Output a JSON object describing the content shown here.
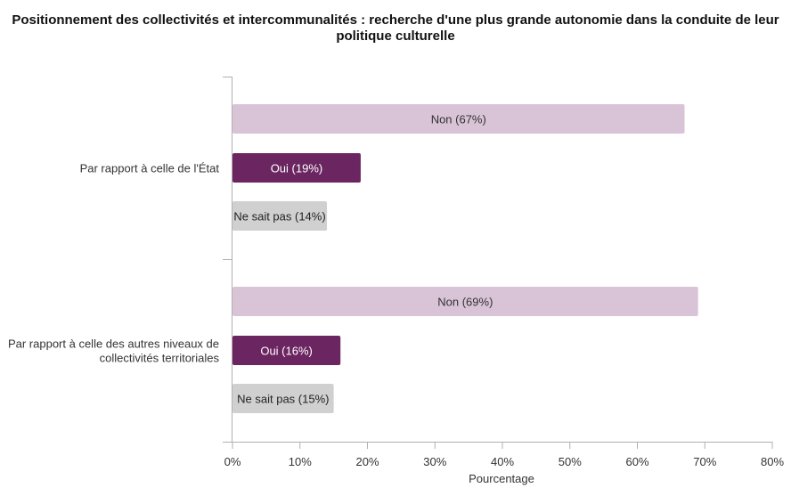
{
  "chart_data": {
    "type": "bar",
    "orientation": "horizontal",
    "title": "Positionnement des collectivités et intercommunalités : recherche d'une plus grande autonomie dans la conduite de leur politique culturelle",
    "xlabel": "Pourcentage",
    "ylabel": "",
    "xlim": [
      0,
      80
    ],
    "x_ticks": [
      "0%",
      "10%",
      "20%",
      "30%",
      "40%",
      "50%",
      "60%",
      "70%",
      "80%"
    ],
    "grid": false,
    "legend": "none",
    "groups": [
      {
        "label": "Par rapport à celle de l'État",
        "bars": [
          {
            "name": "Non",
            "value": 67,
            "label": "Non (67%)"
          },
          {
            "name": "Oui",
            "value": 19,
            "label": "Oui (19%)"
          },
          {
            "name": "Ne sait pas",
            "value": 14,
            "label": "Ne sait pas (14%)"
          }
        ]
      },
      {
        "label": "Par rapport à celle des autres niveaux de collectivités territoriales",
        "bars": [
          {
            "name": "Non",
            "value": 69,
            "label": "Non (69%)"
          },
          {
            "name": "Oui",
            "value": 16,
            "label": "Oui (16%)"
          },
          {
            "name": "Ne sait pas",
            "value": 15,
            "label": "Ne sait pas (15%)"
          }
        ]
      }
    ],
    "colors": {
      "Non": "#d9c4d7",
      "Oui": "#6b2560",
      "Ne sait pas": "#d0d0d0"
    },
    "label_colors": {
      "Non": "#333333",
      "Oui": "#ffffff",
      "Ne sait pas": "#222222"
    }
  }
}
